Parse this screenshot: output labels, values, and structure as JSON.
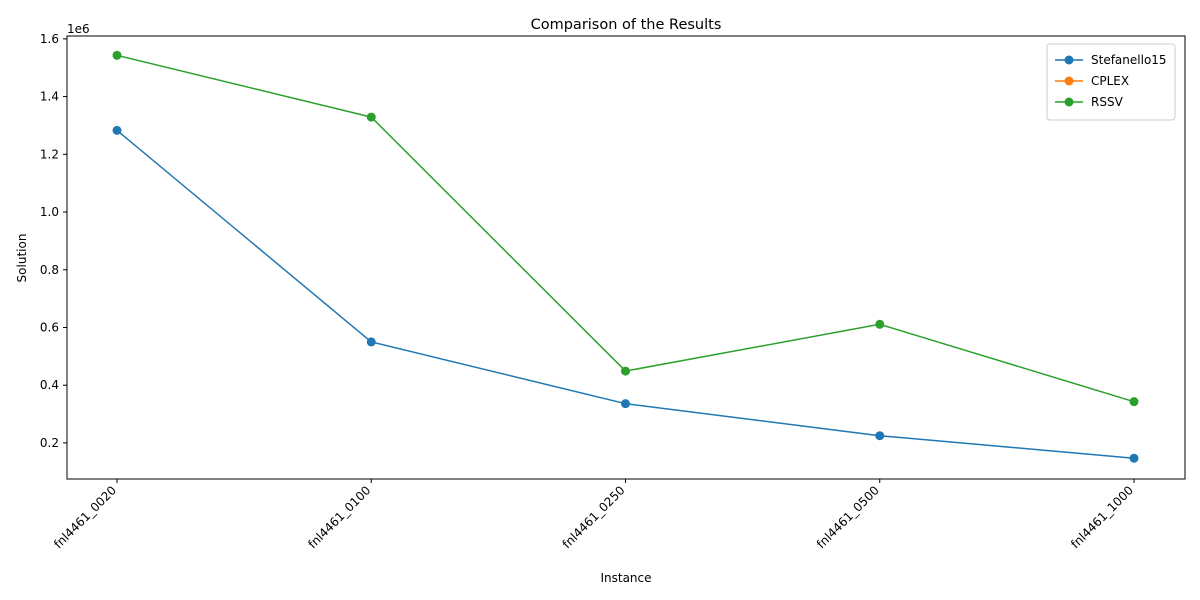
{
  "chart_data": {
    "type": "line",
    "title": "Comparison of the Results",
    "xlabel": "Instance",
    "ylabel": "Solution",
    "y_offset_label": "1e6",
    "categories": [
      "fnl4461_0020",
      "fnl4461_0100",
      "fnl4461_0250",
      "fnl4461_0500",
      "fnl4461_1000"
    ],
    "ylim": [
      75000,
      1610000
    ],
    "yticks": [
      200000,
      400000,
      600000,
      800000,
      1000000,
      1200000,
      1400000,
      1600000
    ],
    "ytick_labels": [
      "0.2",
      "0.4",
      "0.6",
      "0.8",
      "1.0",
      "1.2",
      "1.4",
      "1.6"
    ],
    "grid": false,
    "legend_position": "top-right",
    "series": [
      {
        "name": "Stefanello15",
        "color": "#1f77b4",
        "values": [
          1283000,
          550000,
          336000,
          225000,
          147000
        ]
      },
      {
        "name": "CPLEX",
        "color": "#ff7f0e",
        "values": [
          null,
          null,
          null,
          null,
          null
        ]
      },
      {
        "name": "RSSV",
        "color": "#2ca02c",
        "values": [
          1543000,
          1329000,
          449000,
          611000,
          343000
        ]
      }
    ]
  }
}
